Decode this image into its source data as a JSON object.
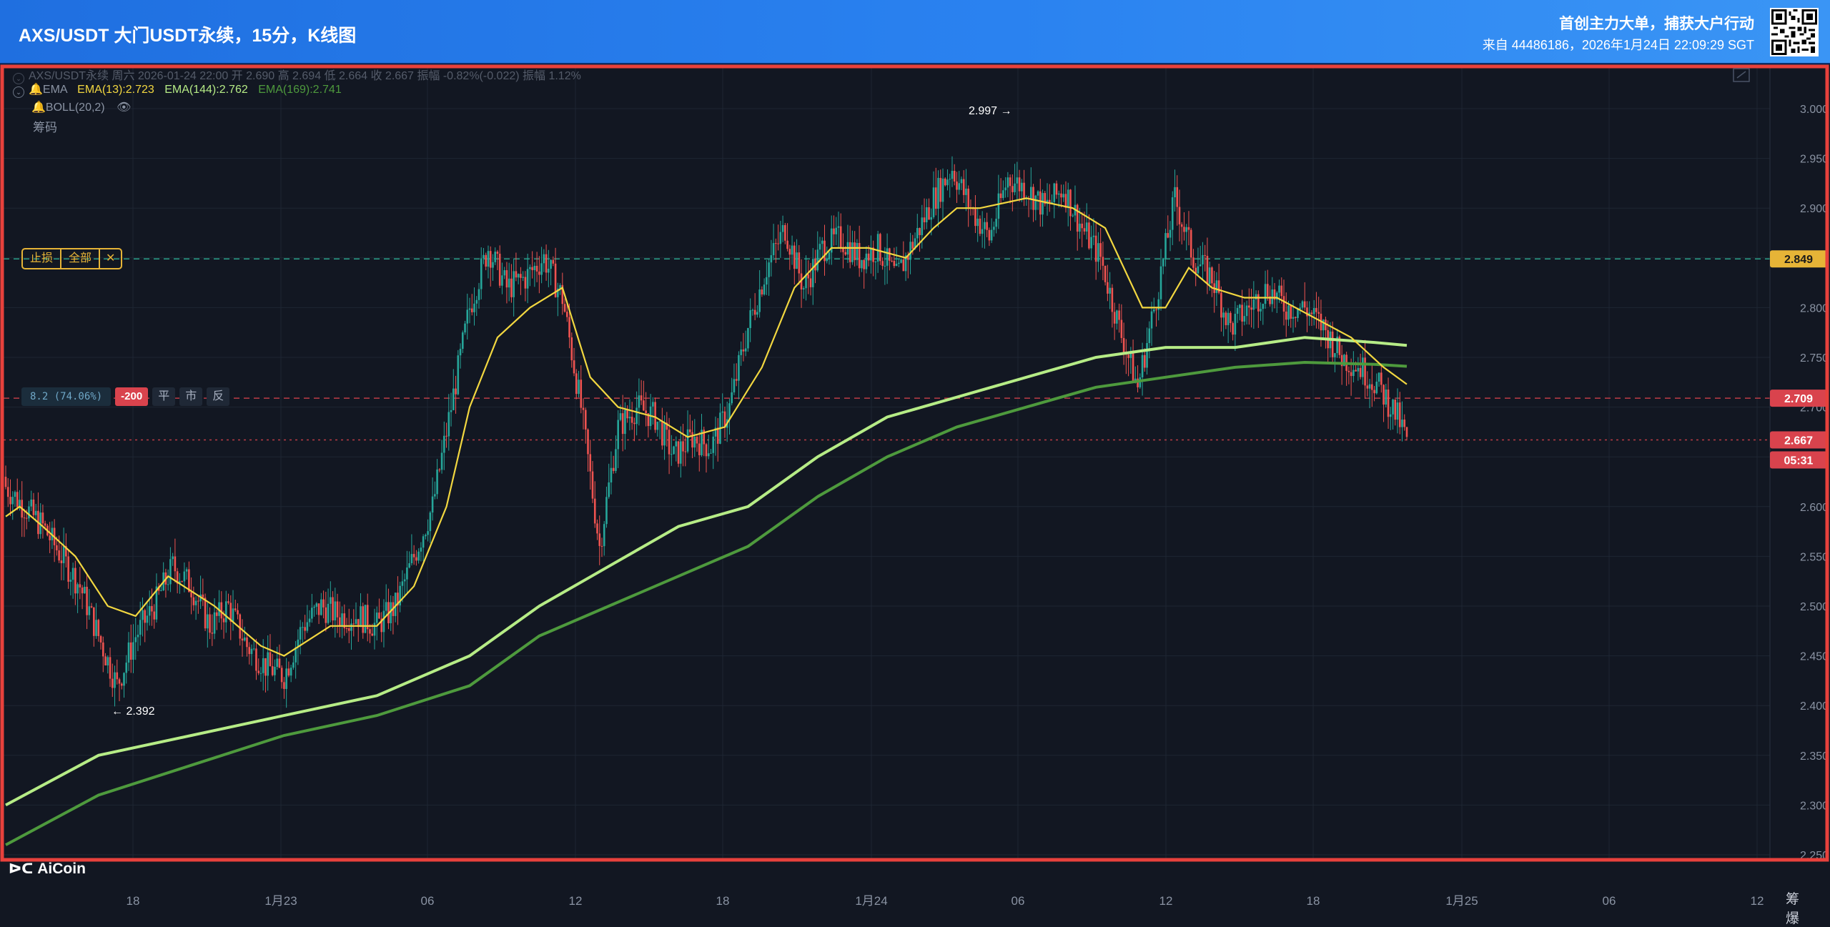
{
  "header": {
    "title": "AXS/USDT 大门USDT永续，15分，K线图",
    "slogan": "首创主力大单，捕获大户行动",
    "source": "来自 44486186，2026年1月24日 22:09:29 SGT",
    "qr_icon": "qr-code-icon"
  },
  "legend": {
    "ohlc_line": "AXS/USDT永续 周六 2026-01-24 22:00 开 2.690 高 2.694 低 2.664 收 2.667 振幅 -0.82%(-0.022) 振幅 1.12%",
    "ema_label": "EMA",
    "ema13": "EMA(13):2.723",
    "ema144": "EMA(144):2.762",
    "ema169": "EMA(169):2.741",
    "boll": "BOLL(20,2)",
    "chips": "筹码"
  },
  "order_buttons": {
    "stop_loss": "止损",
    "all": "全部",
    "close": "✕"
  },
  "position": {
    "pnl": "8.2 (74.06%)",
    "qty": "-200",
    "flat": "平",
    "market": "市",
    "reverse": "反"
  },
  "annotations": {
    "high": "2.997",
    "low": "2.392"
  },
  "price_tags": {
    "stop": "2.849",
    "entry": "2.709",
    "last": "2.667",
    "countdown": "05:31"
  },
  "brand": "AiCoin",
  "corner": [
    "筹",
    "爆"
  ],
  "colors": {
    "up": "#26a69a",
    "down": "#ef5350",
    "ema13": "#f2d740",
    "ema144": "#b6ec86",
    "ema169": "#4e9a3d",
    "frame": "#e8413c",
    "background": "#121722"
  },
  "chart_data": {
    "type": "candlestick",
    "y_axis": {
      "ticks": [
        "3.000",
        "2.950",
        "2.900",
        "2.850",
        "2.800",
        "2.750",
        "2.700",
        "2.650",
        "2.600",
        "2.550",
        "2.500",
        "2.450",
        "2.400",
        "2.350",
        "2.300",
        "2.250"
      ],
      "ylim": [
        2.245,
        3.035
      ]
    },
    "x_axis": {
      "ticks": [
        "18",
        "1月23",
        "06",
        "12",
        "18",
        "1月24",
        "06",
        "12",
        "18",
        "1月25",
        "06",
        "12"
      ]
    },
    "horizontal_lines": [
      {
        "price": 2.849,
        "style": "dashed",
        "color": "#2eb89c"
      },
      {
        "price": 2.709,
        "style": "dashed",
        "color": "#d9434d"
      },
      {
        "price": 2.667,
        "style": "dotted",
        "color": "#d9434d"
      }
    ],
    "close_path": [
      [
        0,
        2.62
      ],
      [
        8,
        2.6
      ],
      [
        16,
        2.58
      ],
      [
        24,
        2.55
      ],
      [
        32,
        2.52
      ],
      [
        40,
        2.47
      ],
      [
        48,
        2.42
      ],
      [
        56,
        2.47
      ],
      [
        64,
        2.5
      ],
      [
        72,
        2.54
      ],
      [
        80,
        2.52
      ],
      [
        88,
        2.48
      ],
      [
        96,
        2.5
      ],
      [
        104,
        2.46
      ],
      [
        112,
        2.44
      ],
      [
        120,
        2.43
      ],
      [
        128,
        2.48
      ],
      [
        136,
        2.5
      ],
      [
        144,
        2.49
      ],
      [
        152,
        2.49
      ],
      [
        160,
        2.48
      ],
      [
        168,
        2.5
      ],
      [
        176,
        2.55
      ],
      [
        184,
        2.6
      ],
      [
        192,
        2.7
      ],
      [
        200,
        2.8
      ],
      [
        208,
        2.86
      ],
      [
        216,
        2.82
      ],
      [
        224,
        2.83
      ],
      [
        232,
        2.85
      ],
      [
        240,
        2.81
      ],
      [
        248,
        2.7
      ],
      [
        256,
        2.56
      ],
      [
        264,
        2.68
      ],
      [
        272,
        2.7
      ],
      [
        280,
        2.69
      ],
      [
        288,
        2.65
      ],
      [
        296,
        2.67
      ],
      [
        304,
        2.66
      ],
      [
        312,
        2.7
      ],
      [
        320,
        2.78
      ],
      [
        328,
        2.84
      ],
      [
        336,
        2.88
      ],
      [
        344,
        2.82
      ],
      [
        352,
        2.86
      ],
      [
        360,
        2.87
      ],
      [
        368,
        2.85
      ],
      [
        376,
        2.86
      ],
      [
        384,
        2.83
      ],
      [
        392,
        2.87
      ],
      [
        400,
        2.91
      ],
      [
        408,
        2.94
      ],
      [
        416,
        2.9
      ],
      [
        424,
        2.87
      ],
      [
        432,
        2.93
      ],
      [
        440,
        2.92
      ],
      [
        448,
        2.9
      ],
      [
        456,
        2.92
      ],
      [
        464,
        2.88
      ],
      [
        472,
        2.85
      ],
      [
        480,
        2.78
      ],
      [
        488,
        2.72
      ],
      [
        496,
        2.81
      ],
      [
        504,
        2.91
      ],
      [
        512,
        2.85
      ],
      [
        520,
        2.83
      ],
      [
        528,
        2.78
      ],
      [
        536,
        2.8
      ],
      [
        544,
        2.82
      ],
      [
        552,
        2.8
      ],
      [
        560,
        2.8
      ],
      [
        568,
        2.78
      ],
      [
        576,
        2.75
      ],
      [
        584,
        2.74
      ],
      [
        592,
        2.72
      ],
      [
        600,
        2.69
      ],
      [
        604,
        2.667
      ]
    ],
    "ema13_path": [
      [
        0,
        2.59
      ],
      [
        6,
        2.6
      ],
      [
        16,
        2.58
      ],
      [
        30,
        2.55
      ],
      [
        44,
        2.5
      ],
      [
        56,
        2.49
      ],
      [
        70,
        2.53
      ],
      [
        90,
        2.5
      ],
      [
        110,
        2.46
      ],
      [
        120,
        2.45
      ],
      [
        140,
        2.48
      ],
      [
        160,
        2.48
      ],
      [
        176,
        2.52
      ],
      [
        190,
        2.6
      ],
      [
        200,
        2.7
      ],
      [
        212,
        2.77
      ],
      [
        226,
        2.8
      ],
      [
        240,
        2.82
      ],
      [
        252,
        2.73
      ],
      [
        264,
        2.7
      ],
      [
        280,
        2.69
      ],
      [
        294,
        2.67
      ],
      [
        310,
        2.68
      ],
      [
        326,
        2.74
      ],
      [
        340,
        2.82
      ],
      [
        356,
        2.86
      ],
      [
        372,
        2.86
      ],
      [
        388,
        2.85
      ],
      [
        400,
        2.88
      ],
      [
        410,
        2.9
      ],
      [
        420,
        2.9
      ],
      [
        440,
        2.91
      ],
      [
        460,
        2.9
      ],
      [
        474,
        2.88
      ],
      [
        490,
        2.8
      ],
      [
        500,
        2.8
      ],
      [
        510,
        2.84
      ],
      [
        520,
        2.82
      ],
      [
        534,
        2.81
      ],
      [
        548,
        2.81
      ],
      [
        564,
        2.79
      ],
      [
        580,
        2.77
      ],
      [
        594,
        2.74
      ],
      [
        604,
        2.723
      ]
    ],
    "ema144_path": [
      [
        0,
        2.3
      ],
      [
        40,
        2.35
      ],
      [
        80,
        2.37
      ],
      [
        120,
        2.39
      ],
      [
        160,
        2.41
      ],
      [
        200,
        2.45
      ],
      [
        230,
        2.5
      ],
      [
        260,
        2.54
      ],
      [
        290,
        2.58
      ],
      [
        320,
        2.6
      ],
      [
        350,
        2.65
      ],
      [
        380,
        2.69
      ],
      [
        410,
        2.71
      ],
      [
        440,
        2.73
      ],
      [
        470,
        2.75
      ],
      [
        500,
        2.76
      ],
      [
        530,
        2.76
      ],
      [
        560,
        2.77
      ],
      [
        590,
        2.765
      ],
      [
        604,
        2.762
      ]
    ],
    "ema169_path": [
      [
        0,
        2.26
      ],
      [
        40,
        2.31
      ],
      [
        80,
        2.34
      ],
      [
        120,
        2.37
      ],
      [
        160,
        2.39
      ],
      [
        200,
        2.42
      ],
      [
        230,
        2.47
      ],
      [
        260,
        2.5
      ],
      [
        290,
        2.53
      ],
      [
        320,
        2.56
      ],
      [
        350,
        2.61
      ],
      [
        380,
        2.65
      ],
      [
        410,
        2.68
      ],
      [
        440,
        2.7
      ],
      [
        470,
        2.72
      ],
      [
        500,
        2.73
      ],
      [
        530,
        2.74
      ],
      [
        560,
        2.745
      ],
      [
        590,
        2.743
      ],
      [
        604,
        2.741
      ]
    ]
  }
}
